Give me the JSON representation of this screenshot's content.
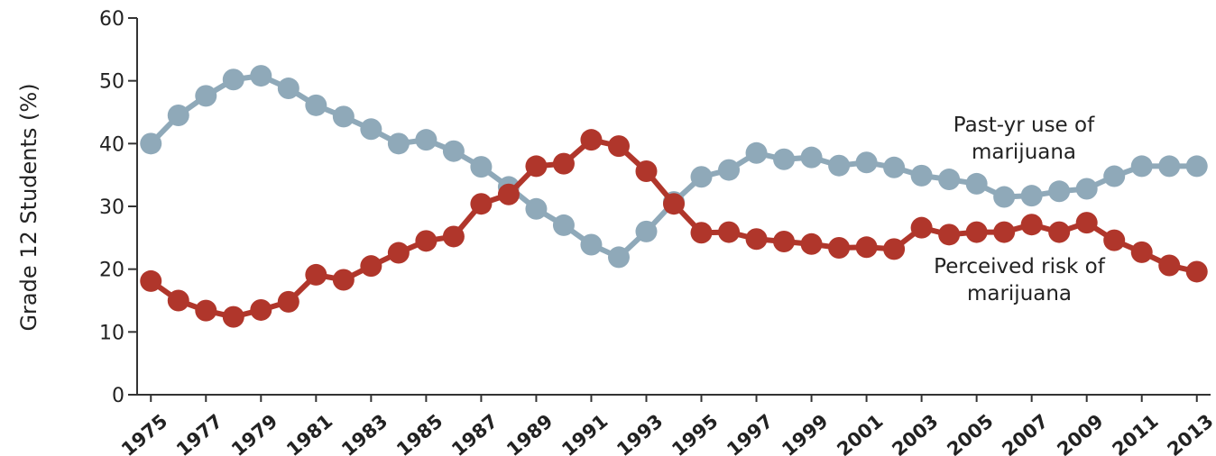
{
  "chart_data": {
    "type": "line",
    "y_label": "Grade 12 Students (%)",
    "x": [
      1975,
      1976,
      1977,
      1978,
      1979,
      1980,
      1981,
      1982,
      1983,
      1984,
      1985,
      1986,
      1987,
      1988,
      1989,
      1990,
      1991,
      1992,
      1993,
      1994,
      1995,
      1996,
      1997,
      1998,
      1999,
      2000,
      2001,
      2002,
      2003,
      2004,
      2005,
      2006,
      2007,
      2008,
      2009,
      2010,
      2011,
      2012,
      2013
    ],
    "series": [
      {
        "name": "Past-yr use of marijuana",
        "color": "#8fa9b9",
        "values": [
          40,
          44.5,
          47.6,
          50.2,
          50.8,
          48.8,
          46.1,
          44.3,
          42.3,
          40.0,
          40.6,
          38.8,
          36.3,
          33.1,
          29.6,
          27.0,
          23.9,
          21.9,
          26.0,
          30.7,
          34.7,
          35.8,
          38.5,
          37.5,
          37.8,
          36.5,
          37.0,
          36.2,
          34.9,
          34.3,
          33.6,
          31.5,
          31.7,
          32.4,
          32.8,
          34.8,
          36.4,
          36.4,
          36.4
        ]
      },
      {
        "name": "Perceived risk of marijuana",
        "color": "#b0362b",
        "values": [
          18.1,
          15.0,
          13.4,
          12.4,
          13.5,
          14.8,
          19.1,
          18.3,
          20.5,
          22.6,
          24.5,
          25.2,
          30.4,
          31.9,
          36.4,
          36.8,
          40.6,
          39.6,
          35.6,
          30.4,
          25.8,
          25.9,
          24.8,
          24.4,
          24.0,
          23.4,
          23.5,
          23.2,
          26.6,
          25.5,
          25.9,
          25.9,
          27.1,
          25.9,
          27.4,
          24.6,
          22.7,
          20.6,
          19.6
        ]
      }
    ],
    "xlim": [
      1974.5,
      2013.5
    ],
    "xticks": [
      1975,
      1977,
      1979,
      1981,
      1983,
      1985,
      1987,
      1989,
      1991,
      1993,
      1995,
      1997,
      1999,
      2001,
      2003,
      2005,
      2007,
      2009,
      2011,
      2013
    ],
    "ylim": [
      0,
      60
    ],
    "yticks": [
      0,
      10,
      20,
      30,
      40,
      50,
      60
    ]
  }
}
